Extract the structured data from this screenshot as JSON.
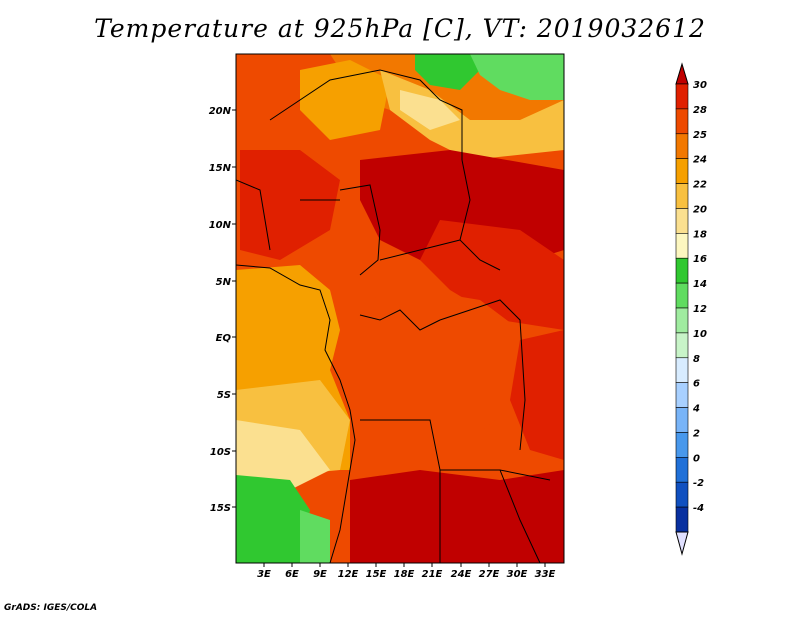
{
  "title": "Temperature at 925hPa [C], VT: 2019032612",
  "credit": "GrADS: IGES/COLA",
  "lat_labels": [
    "20N",
    "15N",
    "10N",
    "5N",
    "EQ",
    "5S",
    "10S",
    "15S"
  ],
  "lon_labels": [
    "3E",
    "6E",
    "9E",
    "12E",
    "15E",
    "18E",
    "21E",
    "24E",
    "27E",
    "30E",
    "33E"
  ],
  "colorbar": {
    "labels": [
      "30",
      "28",
      "25",
      "24",
      "22",
      "20",
      "18",
      "16",
      "14",
      "12",
      "10",
      "8",
      "6",
      "4",
      "2",
      "0",
      "-2",
      "-4"
    ],
    "colors": [
      "#c00000",
      "#e02000",
      "#ee4a00",
      "#f27800",
      "#f6a000",
      "#f8c040",
      "#fbe090",
      "#fdf7c0",
      "#30c830",
      "#60dc60",
      "#a0eca0",
      "#c8f4c8",
      "#d8ecff",
      "#a8d0ff",
      "#78b4f8",
      "#4898ec",
      "#2070d8",
      "#1050c0",
      "#0830a0",
      "#001080"
    ]
  }
}
